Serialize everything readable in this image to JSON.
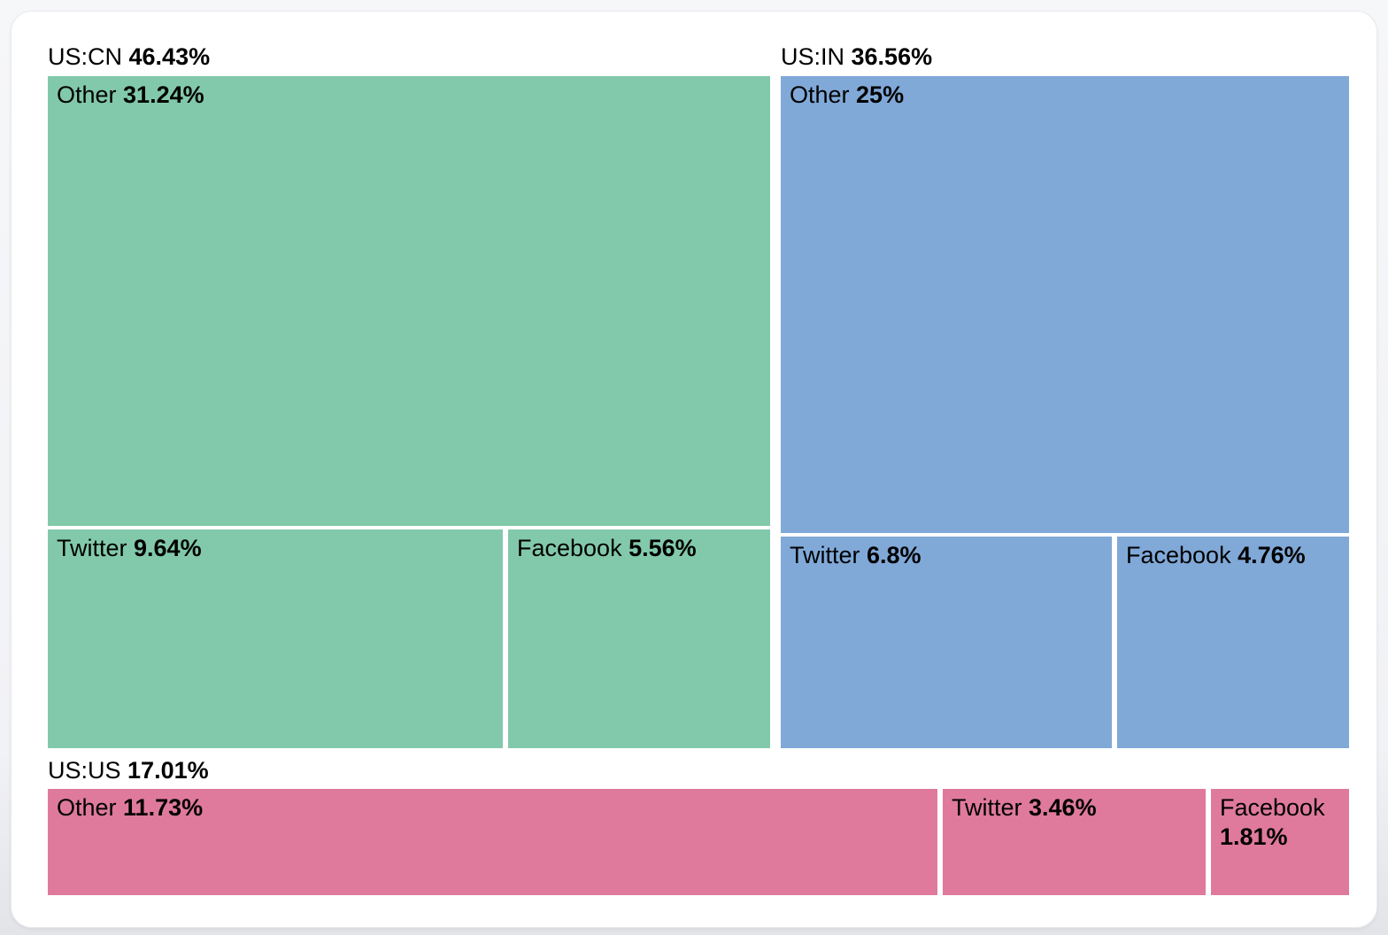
{
  "page": {
    "background_top": "#f6f7f9",
    "background_bottom": "#e3e4e8",
    "card_background": "#ffffff",
    "card_border": "#e9eaee",
    "text_color": "#000000"
  },
  "chart_data": {
    "type": "treemap",
    "title": "",
    "unit": "%",
    "legend_position": "none",
    "grid": false,
    "children_order": [
      "Other",
      "Twitter",
      "Facebook"
    ],
    "layout_hints": {
      "top_row_groups": [
        "US:CN",
        "US:IN"
      ],
      "bottom_row_groups": [
        "US:US"
      ],
      "group_header_above": true,
      "child_split": "other-on-top-then-twitter-facebook-row"
    },
    "groups": [
      {
        "name": "US:CN",
        "total": 46.43,
        "total_label": "46.43%",
        "color": "#82c9ab",
        "children": [
          {
            "name": "Other",
            "value": 31.24,
            "label": "31.24%"
          },
          {
            "name": "Twitter",
            "value": 9.64,
            "label": "9.64%"
          },
          {
            "name": "Facebook",
            "value": 5.56,
            "label": "5.56%"
          }
        ]
      },
      {
        "name": "US:IN",
        "total": 36.56,
        "total_label": "36.56%",
        "color": "#80a9d8",
        "children": [
          {
            "name": "Other",
            "value": 25,
            "label": "25%"
          },
          {
            "name": "Twitter",
            "value": 6.8,
            "label": "6.8%"
          },
          {
            "name": "Facebook",
            "value": 4.76,
            "label": "4.76%"
          }
        ]
      },
      {
        "name": "US:US",
        "total": 17.01,
        "total_label": "17.01%",
        "color": "#df7a9d",
        "children": [
          {
            "name": "Other",
            "value": 11.73,
            "label": "11.73%"
          },
          {
            "name": "Twitter",
            "value": 3.46,
            "label": "3.46%"
          },
          {
            "name": "Facebook",
            "value": 1.81,
            "label": "1.81%"
          }
        ]
      }
    ]
  }
}
